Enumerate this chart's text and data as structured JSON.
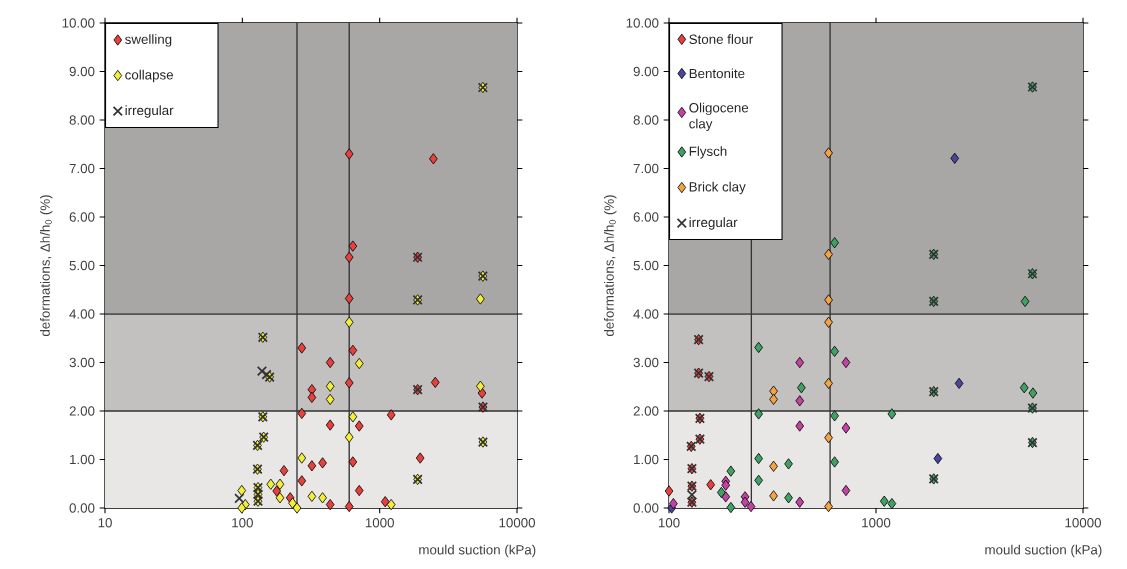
{
  "chart_data": [
    {
      "type": "scatter",
      "log": "x",
      "legend": "top left",
      "xlabel": "mould suction  (kPa)",
      "ylabel": "deformations, Δh/h$_{0}$ (%)",
      "xlim": [
        10,
        10000
      ],
      "ylim": [
        0,
        10
      ],
      "xticks": [
        10,
        100,
        1000,
        10000
      ],
      "yticks": [
        {
          "value": 0,
          "label": "0.00"
        },
        {
          "value": 1,
          "label": "1.00"
        },
        {
          "value": 2,
          "label": "2.00"
        },
        {
          "value": 3,
          "label": "3.00"
        },
        {
          "value": 4,
          "label": "4.00"
        },
        {
          "value": 5,
          "label": "5.00"
        },
        {
          "value": 6,
          "label": "6.00"
        },
        {
          "value": 7,
          "label": "7.00"
        },
        {
          "value": 8,
          "label": "8.00"
        },
        {
          "value": 9,
          "label": "9.00"
        },
        {
          "value": 10,
          "label": "10.00"
        }
      ],
      "bands": [
        {
          "axis": "y",
          "from": 0,
          "to": 2,
          "color": "#e9e7e6"
        },
        {
          "axis": "y",
          "from": 2,
          "to": 4,
          "color": "#c3c0c0"
        },
        {
          "axis": "y",
          "from": 4,
          "to": 10,
          "color": "#a9a6a6"
        }
      ],
      "ref_lines": [
        {
          "axis": "y",
          "value": 2,
          "color": "#333333"
        },
        {
          "axis": "y",
          "value": 4,
          "color": "#333333"
        },
        {
          "axis": "x",
          "value": 250,
          "color": "#333333"
        },
        {
          "axis": "x",
          "value": 600,
          "color": "#333333"
        }
      ],
      "series": [
        {
          "name": "swelling",
          "color": "#e8403c",
          "marker": "diamond",
          "x": [
            600,
            271,
            436,
            638,
            321,
            321,
            600,
            2540,
            5560,
            271,
            436,
            710,
            1213,
            638,
            1972,
            321,
            384,
            271,
            201,
            178,
            223,
            710,
            436,
            600,
            1097,
            600,
            2460,
            638,
            600,
            1890,
            1890,
            5650
          ],
          "values": [
            4.32,
            3.3,
            3.0,
            3.25,
            2.44,
            2.28,
            2.58,
            2.59,
            2.37,
            1.95,
            1.71,
            1.69,
            1.92,
            0.95,
            1.03,
            0.87,
            0.93,
            0.56,
            0.77,
            0.35,
            0.21,
            0.36,
            0.07,
            0.03,
            0.13,
            7.3,
            7.2,
            5.4,
            5.17,
            5.17,
            2.44,
            2.08
          ]
        },
        {
          "name": "collapse",
          "color": "#f2ee3a",
          "marker": "diamond",
          "x": [
            600,
            710,
            436,
            436,
            5410,
            5410,
            638,
            600,
            271,
            188,
            161,
            188,
            232,
            250,
            321,
            384,
            1213,
            99,
            105,
            99,
            5640,
            5640,
            1890,
            5650,
            1890,
            141,
            158,
            141,
            143,
            129,
            129,
            130,
            130,
            130
          ],
          "values": [
            3.83,
            2.98,
            2.51,
            2.24,
            4.31,
            2.51,
            1.88,
            1.46,
            1.03,
            0.49,
            0.49,
            0.21,
            0.1,
            0.0,
            0.24,
            0.21,
            0.07,
            0.36,
            0.07,
            0.0,
            8.67,
            4.78,
            4.29,
            1.36,
            0.59,
            3.52,
            2.7,
            1.88,
            1.46,
            1.29,
            0.8,
            0.42,
            0.28,
            0.14
          ]
        },
        {
          "name": "irregular",
          "color": "#333333",
          "marker": "cross",
          "x": [
            5640,
            5640,
            1890,
            1890,
            1890,
            5650,
            5650,
            1890,
            141,
            139,
            150,
            158,
            141,
            143,
            129,
            129,
            130,
            130,
            130,
            95
          ],
          "values": [
            8.67,
            4.78,
            5.17,
            4.29,
            2.44,
            2.08,
            1.36,
            0.59,
            3.52,
            2.82,
            2.75,
            2.7,
            1.88,
            1.46,
            1.29,
            0.8,
            0.42,
            0.28,
            0.14,
            0.2
          ]
        }
      ]
    },
    {
      "type": "scatter",
      "log": "x",
      "legend": "top left",
      "xlabel": "mould suction  (kPa)",
      "ylabel": "deformations, Δh/h$_{0}$ (%)",
      "xlim": [
        100,
        10000
      ],
      "ylim": [
        0,
        10
      ],
      "xticks": [
        100,
        1000,
        10000
      ],
      "yticks": [
        {
          "value": 0,
          "label": "0.00"
        },
        {
          "value": 1,
          "label": "1.00"
        },
        {
          "value": 2,
          "label": "2.00"
        },
        {
          "value": 3,
          "label": "3.00"
        },
        {
          "value": 4,
          "label": "4.00"
        },
        {
          "value": 5,
          "label": "5.00"
        },
        {
          "value": 6,
          "label": "6.00"
        },
        {
          "value": 7,
          "label": "7.00"
        },
        {
          "value": 8,
          "label": "8.00"
        },
        {
          "value": 9,
          "label": "9.00"
        },
        {
          "value": 10,
          "label": "10.00"
        }
      ],
      "bands": [
        {
          "axis": "y",
          "from": 0,
          "to": 2,
          "color": "#e9e7e6"
        },
        {
          "axis": "y",
          "from": 2,
          "to": 4,
          "color": "#c3c0c0"
        },
        {
          "axis": "y",
          "from": 4,
          "to": 10,
          "color": "#a9a6a6"
        }
      ],
      "ref_lines": [
        {
          "axis": "y",
          "value": 2,
          "color": "#333333"
        },
        {
          "axis": "y",
          "value": 4,
          "color": "#333333"
        },
        {
          "axis": "x",
          "value": 250,
          "color": "#333333"
        },
        {
          "axis": "x",
          "value": 600,
          "color": "#333333"
        }
      ],
      "series": [
        {
          "name": "Stone flour",
          "color": "#e8403c",
          "marker": "diamond",
          "x": [
            100,
            159,
            139,
            139,
            156,
            141,
            141,
            128,
            129,
            129,
            129
          ],
          "values": [
            0.35,
            0.48,
            3.47,
            2.78,
            2.71,
            1.85,
            1.42,
            1.27,
            0.81,
            0.45,
            0.12
          ]
        },
        {
          "name": "Bentonite",
          "color": "#4a46a0",
          "marker": "diamond",
          "x": [
            2400,
            2520,
            1990,
            103
          ],
          "values": [
            7.21,
            2.57,
            1.02,
            0.0
          ]
        },
        {
          "name": "Oligocene clay",
          "color": "#c442a4",
          "marker": "diamond",
          "x": [
            428,
            716,
            428,
            428,
            716,
            716,
            428,
            188,
            188,
            188,
            233,
            233,
            249,
            105
          ],
          "values": [
            3.0,
            3.0,
            2.21,
            1.69,
            1.65,
            0.36,
            0.12,
            0.55,
            0.47,
            0.23,
            0.23,
            0.12,
            0.03,
            0.09
          ]
        },
        {
          "name": "Flysch",
          "color": "#3fa264",
          "marker": "diamond",
          "x": [
            271,
            631,
            436,
            271,
            631,
            1193,
            271,
            378,
            631,
            271,
            199,
            179,
            199,
            378,
            1096,
            1193,
            5250,
            5200,
            5730,
            631,
            1900,
            1900,
            1900,
            5700,
            5700,
            5700,
            1900,
            5700
          ],
          "values": [
            3.31,
            3.23,
            2.48,
            1.94,
            1.9,
            1.94,
            1.02,
            0.91,
            0.95,
            0.57,
            0.76,
            0.32,
            0.01,
            0.21,
            0.14,
            0.09,
            4.26,
            2.48,
            2.37,
            5.47,
            4.26,
            2.4,
            0.6,
            2.06,
            1.35,
            8.68,
            5.23,
            4.83
          ]
        },
        {
          "name": "Brick clay",
          "color": "#f2a444",
          "marker": "diamond",
          "x": [
            590,
            590,
            590,
            590,
            590,
            590,
            590,
            320,
            320,
            320,
            320
          ],
          "values": [
            7.32,
            5.23,
            4.29,
            3.83,
            2.57,
            1.45,
            0.03,
            2.41,
            2.24,
            0.86,
            0.25
          ]
        },
        {
          "name": "irregular",
          "color": "#333333",
          "marker": "cross",
          "x": [
            139,
            139,
            156,
            141,
            141,
            128,
            129,
            129,
            129,
            129,
            1900,
            1900,
            1900,
            5700,
            5700,
            5700,
            1900,
            5700
          ],
          "values": [
            3.47,
            2.78,
            2.71,
            1.85,
            1.42,
            1.27,
            0.81,
            0.45,
            0.27,
            0.12,
            4.26,
            2.4,
            0.6,
            2.06,
            1.35,
            8.68,
            5.23,
            4.83
          ]
        }
      ]
    }
  ]
}
